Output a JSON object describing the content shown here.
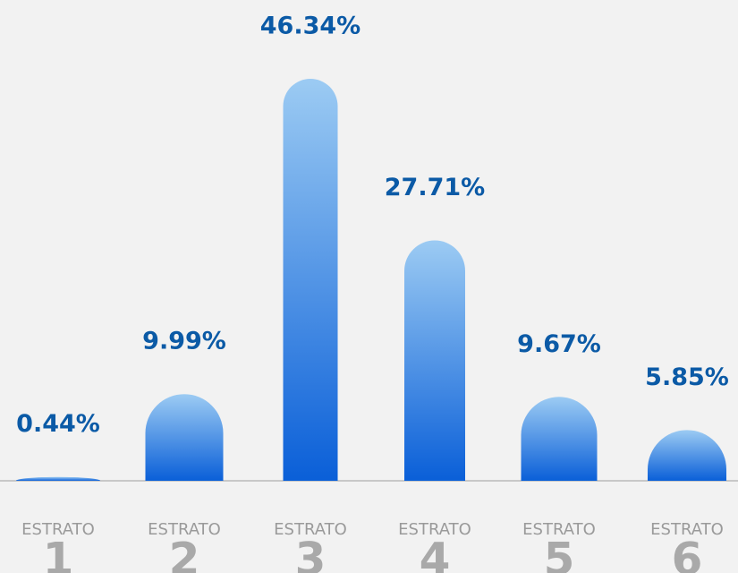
{
  "chart_data": {
    "type": "bar",
    "category_prefix": "ESTRATO",
    "categories": [
      "1",
      "2",
      "3",
      "4",
      "5",
      "6"
    ],
    "values": [
      0.44,
      9.99,
      46.34,
      27.71,
      9.67,
      5.85
    ],
    "value_labels": [
      "0.44%",
      "9.99%",
      "46.34%",
      "27.71%",
      "9.67%",
      "5.85%"
    ],
    "color": "#0a5fd8",
    "label_color": "#0b5aa6"
  }
}
